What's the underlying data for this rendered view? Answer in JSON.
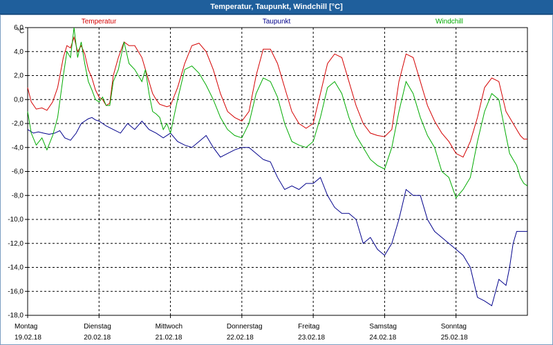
{
  "window": {
    "title": "Temperatur, Taupunkt, Windchill [°C]"
  },
  "chart_data": {
    "type": "line",
    "title": "Temperatur, Taupunkt, Windchill [°C]",
    "ylabel": "°C",
    "ylim": [
      -18,
      6
    ],
    "yticks": [
      6,
      4,
      2,
      0,
      -2,
      -4,
      -6,
      -8,
      -10,
      -12,
      -14,
      -16,
      -18
    ],
    "ytick_labels": [
      "6,0",
      "4,0",
      "2,0",
      "0,0",
      "-2,0",
      "-4,0",
      "-6,0",
      "-8,0",
      "-10,0",
      "-12,0",
      "-14,0",
      "-16,0",
      "-18,0"
    ],
    "xlim": [
      0,
      7
    ],
    "grid": true,
    "x_ticks": [
      {
        "x": 0,
        "day": "Montag",
        "date": "19.02.18"
      },
      {
        "x": 1,
        "day": "Dienstag",
        "date": "20.02.18"
      },
      {
        "x": 2,
        "day": "Mittwoch",
        "date": "21.02.18"
      },
      {
        "x": 3,
        "day": "Donnerstag",
        "date": "22.02.18"
      },
      {
        "x": 4,
        "day": "Freitag",
        "date": "23.02.18"
      },
      {
        "x": 5,
        "day": "Samstag",
        "date": "24.02.18"
      },
      {
        "x": 6,
        "day": "Sonntag",
        "date": "25.02.18"
      }
    ],
    "series": [
      {
        "name": "Temperatur",
        "color": "#d40000",
        "x": [
          0,
          0.05,
          0.12,
          0.2,
          0.27,
          0.35,
          0.42,
          0.5,
          0.55,
          0.6,
          0.65,
          0.7,
          0.75,
          0.8,
          0.85,
          0.9,
          0.95,
          1.0,
          1.05,
          1.1,
          1.15,
          1.2,
          1.27,
          1.35,
          1.42,
          1.5,
          1.55,
          1.6,
          1.65,
          1.7,
          1.75,
          1.8,
          1.85,
          1.9,
          1.95,
          2.0,
          2.1,
          2.2,
          2.3,
          2.4,
          2.5,
          2.6,
          2.7,
          2.8,
          2.9,
          3.0,
          3.1,
          3.2,
          3.3,
          3.4,
          3.5,
          3.6,
          3.7,
          3.8,
          3.9,
          4.0,
          4.1,
          4.2,
          4.3,
          4.4,
          4.5,
          4.6,
          4.7,
          4.8,
          4.9,
          5.0,
          5.1,
          5.2,
          5.3,
          5.4,
          5.5,
          5.6,
          5.7,
          5.8,
          5.9,
          6.0,
          6.1,
          6.2,
          6.3,
          6.4,
          6.5,
          6.6,
          6.7,
          6.75,
          6.8,
          6.85,
          6.9,
          6.95,
          7.0
        ],
        "values": [
          1.0,
          -0.2,
          -0.8,
          -0.7,
          -0.9,
          -0.2,
          1.0,
          3.5,
          4.5,
          4.3,
          5.2,
          4.0,
          4.5,
          3.8,
          2.5,
          1.8,
          0.8,
          0.2,
          0.0,
          -0.5,
          -0.3,
          2.0,
          3.5,
          4.8,
          4.5,
          4.5,
          4.0,
          3.5,
          2.5,
          1.5,
          0.5,
          0.0,
          -0.4,
          -0.5,
          -0.6,
          -0.5,
          1.0,
          3.0,
          4.5,
          4.7,
          4.0,
          2.5,
          0.5,
          -1.0,
          -1.5,
          -1.8,
          -1.0,
          2.0,
          4.2,
          4.2,
          3.0,
          1.0,
          -1.0,
          -2.0,
          -2.4,
          -2.0,
          0.5,
          3.0,
          3.8,
          3.5,
          1.5,
          -0.5,
          -2.0,
          -2.8,
          -3.0,
          -3.1,
          -2.5,
          1.5,
          3.8,
          3.5,
          1.5,
          -0.5,
          -1.8,
          -2.8,
          -3.5,
          -4.5,
          -4.8,
          -3.5,
          -1.5,
          1.0,
          1.8,
          1.5,
          -1.0,
          -1.5,
          -2.0,
          -2.5,
          -3.0,
          -3.3,
          -3.3
        ]
      },
      {
        "name": "Taupunkt",
        "color": "#00008b",
        "x": [
          0,
          0.08,
          0.15,
          0.22,
          0.3,
          0.38,
          0.45,
          0.52,
          0.6,
          0.68,
          0.75,
          0.8,
          0.85,
          0.9,
          0.95,
          1.0,
          1.1,
          1.2,
          1.3,
          1.4,
          1.5,
          1.6,
          1.7,
          1.8,
          1.9,
          2.0,
          2.1,
          2.2,
          2.3,
          2.4,
          2.5,
          2.6,
          2.7,
          2.8,
          2.9,
          3.0,
          3.1,
          3.2,
          3.3,
          3.4,
          3.5,
          3.6,
          3.7,
          3.8,
          3.9,
          4.0,
          4.1,
          4.2,
          4.3,
          4.4,
          4.5,
          4.6,
          4.7,
          4.8,
          4.9,
          5.0,
          5.1,
          5.2,
          5.3,
          5.4,
          5.5,
          5.6,
          5.7,
          5.8,
          5.9,
          6.0,
          6.1,
          6.2,
          6.3,
          6.4,
          6.5,
          6.6,
          6.7,
          6.75,
          6.8,
          6.85,
          6.9,
          6.95,
          7.0
        ],
        "values": [
          -2.5,
          -2.8,
          -2.7,
          -2.8,
          -2.9,
          -2.8,
          -2.6,
          -3.2,
          -3.4,
          -2.8,
          -2.0,
          -1.8,
          -1.6,
          -1.5,
          -1.7,
          -1.8,
          -2.2,
          -2.5,
          -2.8,
          -2.0,
          -2.5,
          -1.8,
          -2.5,
          -2.8,
          -3.2,
          -2.8,
          -3.5,
          -3.8,
          -4.0,
          -3.5,
          -3.0,
          -4.0,
          -4.8,
          -4.5,
          -4.2,
          -4.0,
          -4.0,
          -4.5,
          -5.0,
          -5.2,
          -6.5,
          -7.5,
          -7.2,
          -7.5,
          -7.0,
          -7.0,
          -6.5,
          -8.0,
          -9.0,
          -9.5,
          -9.5,
          -10.0,
          -12.0,
          -11.5,
          -12.5,
          -13.0,
          -12.0,
          -10.0,
          -7.5,
          -8.0,
          -8.0,
          -10.0,
          -11.0,
          -11.5,
          -12.0,
          -12.5,
          -13.0,
          -14.0,
          -16.5,
          -16.8,
          -17.2,
          -15.0,
          -15.5,
          -14.0,
          -12.0,
          -11.0,
          -11.0,
          -11.0,
          -11.0
        ]
      },
      {
        "name": "Windchill",
        "color": "#00aa00",
        "x": [
          0,
          0.05,
          0.12,
          0.2,
          0.27,
          0.35,
          0.42,
          0.5,
          0.55,
          0.6,
          0.65,
          0.7,
          0.75,
          0.8,
          0.85,
          0.9,
          0.95,
          1.0,
          1.05,
          1.1,
          1.15,
          1.2,
          1.27,
          1.35,
          1.42,
          1.5,
          1.55,
          1.6,
          1.65,
          1.7,
          1.75,
          1.8,
          1.85,
          1.9,
          1.95,
          2.0,
          2.1,
          2.2,
          2.3,
          2.4,
          2.5,
          2.6,
          2.7,
          2.8,
          2.9,
          3.0,
          3.1,
          3.2,
          3.3,
          3.4,
          3.5,
          3.6,
          3.7,
          3.8,
          3.9,
          4.0,
          4.1,
          4.2,
          4.3,
          4.4,
          4.5,
          4.6,
          4.7,
          4.8,
          4.9,
          5.0,
          5.1,
          5.2,
          5.3,
          5.4,
          5.5,
          5.6,
          5.7,
          5.8,
          5.9,
          6.0,
          6.1,
          6.2,
          6.3,
          6.4,
          6.5,
          6.6,
          6.7,
          6.75,
          6.8,
          6.85,
          6.9,
          6.95,
          7.0
        ],
        "values": [
          -1.0,
          -2.8,
          -3.8,
          -3.2,
          -4.2,
          -3.0,
          -1.5,
          2.0,
          4.0,
          3.5,
          6.0,
          3.5,
          4.8,
          3.0,
          1.5,
          0.8,
          0.0,
          -0.2,
          0.2,
          -0.5,
          -0.5,
          1.5,
          2.5,
          4.8,
          3.0,
          2.5,
          2.0,
          1.5,
          2.5,
          0.5,
          -1.0,
          -1.2,
          -1.5,
          -2.5,
          -2.0,
          -2.8,
          0.0,
          2.5,
          2.8,
          2.2,
          1.2,
          0.0,
          -1.5,
          -2.5,
          -3.0,
          -3.2,
          -2.0,
          0.5,
          1.8,
          1.5,
          0.2,
          -2.0,
          -3.5,
          -3.8,
          -4.0,
          -3.5,
          -1.5,
          1.0,
          1.5,
          0.5,
          -1.5,
          -3.0,
          -4.0,
          -5.0,
          -5.5,
          -5.8,
          -4.0,
          -1.0,
          1.5,
          0.5,
          -1.5,
          -3.0,
          -4.0,
          -6.0,
          -6.5,
          -8.2,
          -7.5,
          -6.5,
          -3.5,
          -1.0,
          0.5,
          0.0,
          -3.0,
          -4.5,
          -5.0,
          -5.5,
          -6.5,
          -7.0,
          -7.2
        ]
      }
    ],
    "legend": {
      "placement": "top"
    }
  }
}
